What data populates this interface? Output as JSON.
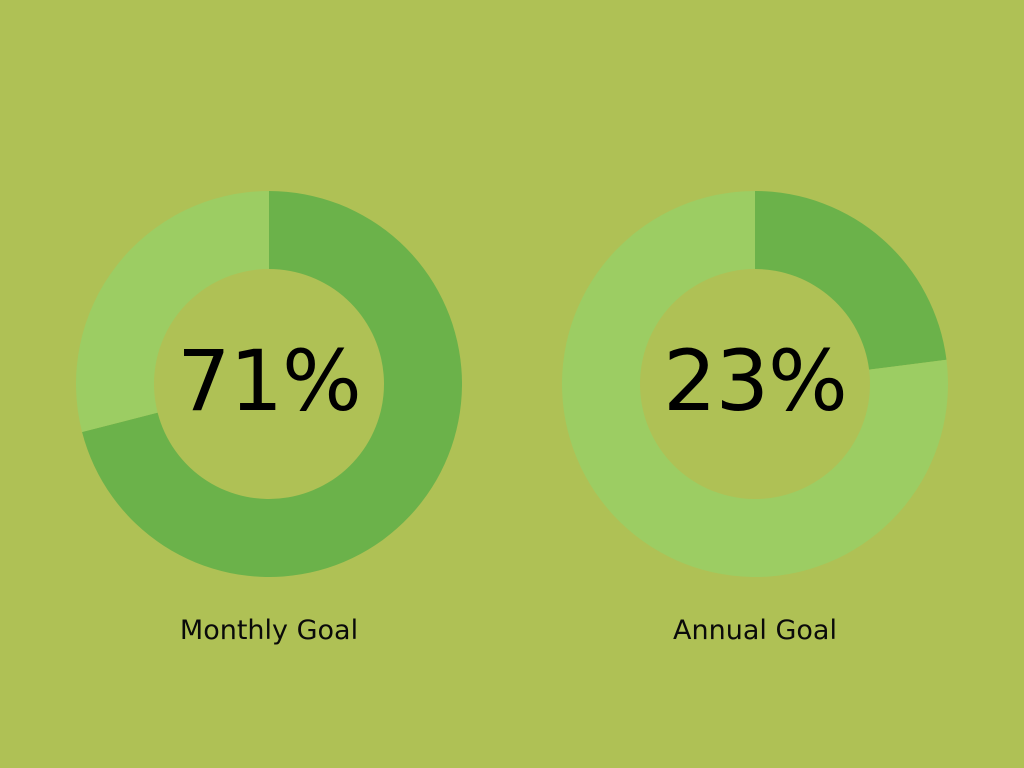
{
  "colors": {
    "background": "#afc155",
    "progress": "#6bb24a",
    "remaining": "#9ccd63"
  },
  "chart_data": [
    {
      "type": "pie",
      "variant": "donut",
      "label": "Monthly Goal",
      "center_text": "71%",
      "value": 71,
      "max": 100,
      "slices": [
        {
          "value": 71,
          "color": "#6bb24a"
        },
        {
          "value": 29,
          "color": "#9ccd63"
        }
      ]
    },
    {
      "type": "pie",
      "variant": "donut",
      "label": "Annual Goal",
      "center_text": "23%",
      "value": 23,
      "max": 100,
      "slices": [
        {
          "value": 23,
          "color": "#6bb24a"
        },
        {
          "value": 77,
          "color": "#9ccd63"
        }
      ]
    }
  ]
}
